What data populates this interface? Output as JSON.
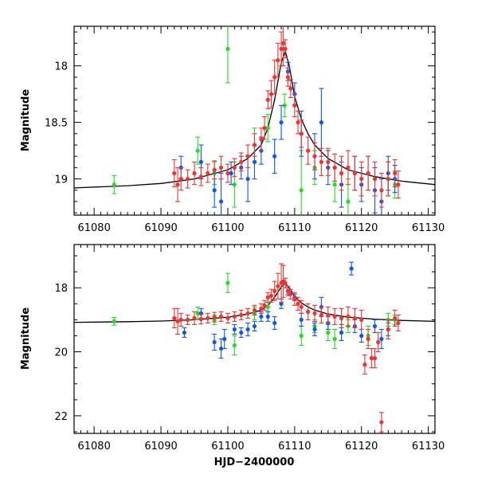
{
  "chart_data": [
    {
      "id": "top",
      "type": "scatter",
      "title": "",
      "xlabel": "",
      "ylabel": "Magnitude",
      "xlim": [
        61077,
        61131
      ],
      "ylim": [
        17.65,
        19.32
      ],
      "y_inverted": true,
      "xticks": [
        61080,
        61090,
        61100,
        61110,
        61120,
        61130
      ],
      "xtick_labels": [
        "61080",
        "61090",
        "61100",
        "61110",
        "61120",
        "61130"
      ],
      "yticks": [
        18,
        18.5,
        19
      ],
      "ytick_labels": [
        "18",
        "18.5",
        "19"
      ],
      "model_curve": {
        "x": [
          61077,
          61085,
          61090,
          61095,
          61100,
          61103,
          61105,
          61106,
          61107,
          61108,
          61108.6,
          61109.2,
          61110,
          61111,
          61112,
          61113,
          61115,
          61118,
          61122,
          61126,
          61131
        ],
        "y": [
          19.08,
          19.06,
          19.04,
          19.0,
          18.92,
          18.82,
          18.7,
          18.55,
          18.3,
          17.97,
          17.87,
          18.0,
          18.27,
          18.47,
          18.6,
          18.7,
          18.82,
          18.92,
          18.98,
          19.02,
          19.05
        ]
      },
      "series": [
        {
          "name": "green",
          "color": "#22dd22",
          "x": [
            61083,
            61095.5,
            61098,
            61100,
            61101,
            61104,
            61106,
            61108.5,
            61111,
            61113,
            61116,
            61118,
            61121,
            61124,
            61125
          ],
          "y": [
            19.05,
            18.75,
            18.95,
            17.85,
            19.05,
            18.7,
            18.55,
            18.35,
            19.1,
            18.9,
            19.05,
            19.2,
            18.95,
            19.0,
            19.05
          ],
          "err": [
            0.08,
            0.12,
            0.1,
            0.3,
            0.2,
            0.15,
            0.12,
            0.1,
            0.35,
            0.15,
            0.15,
            0.2,
            0.15,
            0.15,
            0.12
          ]
        },
        {
          "name": "blue",
          "color": "#1155ee",
          "x": [
            61093,
            61096,
            61098,
            61099,
            61100.5,
            61102,
            61103,
            61104,
            61105,
            61107,
            61108,
            61109,
            61110,
            61111,
            61113,
            61114,
            61115,
            61117,
            61119,
            61120,
            61122,
            61123,
            61124,
            61125
          ],
          "y": [
            18.9,
            18.85,
            19.1,
            19.2,
            18.95,
            18.9,
            19.0,
            18.85,
            18.75,
            18.8,
            18.5,
            18.05,
            18.25,
            18.6,
            18.8,
            18.5,
            18.9,
            19.05,
            18.95,
            19.05,
            19.1,
            19.2,
            18.95,
            19.0
          ],
          "err": [
            0.1,
            0.15,
            0.15,
            0.25,
            0.1,
            0.1,
            0.2,
            0.15,
            0.12,
            0.15,
            0.15,
            0.08,
            0.1,
            0.2,
            0.2,
            0.3,
            0.15,
            0.2,
            0.15,
            0.15,
            0.2,
            0.2,
            0.15,
            0.12
          ]
        },
        {
          "name": "red",
          "color": "#ee3333",
          "x": [
            61092,
            61092.5,
            61093,
            61094,
            61095,
            61096,
            61097,
            61098,
            61099,
            61100,
            61101,
            61102,
            61103,
            61104,
            61105,
            61105.5,
            61106,
            61106.5,
            61107,
            61107.5,
            61108,
            61108.3,
            61108.6,
            61109,
            61109.4,
            61110,
            61110.5,
            61111,
            61112,
            61113,
            61114,
            61115,
            61116,
            61117,
            61118,
            61119,
            61120,
            61121,
            61122,
            61123,
            61124,
            61125,
            61125.5
          ],
          "y": [
            18.95,
            19.05,
            19.0,
            19.0,
            18.95,
            18.98,
            18.95,
            18.92,
            18.9,
            18.95,
            18.9,
            18.85,
            18.8,
            18.7,
            18.65,
            18.55,
            18.3,
            18.25,
            18.1,
            17.95,
            17.85,
            17.8,
            17.85,
            18.1,
            18.2,
            18.35,
            18.5,
            18.6,
            18.75,
            18.8,
            18.85,
            18.85,
            18.9,
            18.95,
            18.9,
            18.95,
            19.0,
            18.95,
            19.0,
            19.1,
            19.0,
            18.95,
            19.05
          ],
          "err": [
            0.12,
            0.15,
            0.1,
            0.08,
            0.1,
            0.08,
            0.08,
            0.08,
            0.1,
            0.08,
            0.08,
            0.08,
            0.1,
            0.1,
            0.1,
            0.1,
            0.08,
            0.12,
            0.15,
            0.15,
            0.15,
            0.2,
            0.08,
            0.08,
            0.08,
            0.1,
            0.1,
            0.12,
            0.12,
            0.12,
            0.12,
            0.12,
            0.12,
            0.15,
            0.15,
            0.15,
            0.15,
            0.15,
            0.15,
            0.15,
            0.15,
            0.12,
            0.12
          ]
        }
      ]
    },
    {
      "id": "bottom",
      "type": "scatter",
      "title": "",
      "xlabel": "HJD−2400000",
      "ylabel": "Magnitude",
      "xlim": [
        61077,
        61131
      ],
      "ylim": [
        16.65,
        22.55
      ],
      "y_inverted": true,
      "xticks": [
        61080,
        61090,
        61100,
        61110,
        61120,
        61130
      ],
      "xtick_labels": [
        "61080",
        "61090",
        "61100",
        "61110",
        "61120",
        "61130"
      ],
      "yticks": [
        18,
        20,
        22
      ],
      "ytick_labels": [
        "18",
        "20",
        "22"
      ],
      "model_curve": {
        "x": [
          61077,
          61085,
          61090,
          61095,
          61100,
          61103,
          61105,
          61106,
          61107,
          61108,
          61108.6,
          61109.2,
          61110,
          61111,
          61112,
          61113,
          61115,
          61118,
          61122,
          61126,
          61131
        ],
        "y": [
          19.08,
          19.06,
          19.04,
          19.0,
          18.92,
          18.82,
          18.7,
          18.55,
          18.3,
          17.97,
          17.87,
          18.0,
          18.27,
          18.47,
          18.6,
          18.7,
          18.82,
          18.92,
          18.98,
          19.02,
          19.05
        ]
      },
      "series": [
        {
          "name": "green",
          "color": "#22dd22",
          "x": [
            61083,
            61095.5,
            61098,
            61100,
            61101,
            61104,
            61106,
            61111,
            61113,
            61115,
            61116,
            61117,
            61118,
            61121,
            61124,
            61125
          ],
          "y": [
            19.05,
            18.8,
            19.0,
            17.85,
            19.8,
            18.8,
            18.6,
            19.5,
            19.2,
            19.4,
            19.6,
            19.4,
            19.2,
            19.5,
            19.0,
            19.0
          ],
          "err": [
            0.12,
            0.2,
            0.15,
            0.3,
            0.3,
            0.2,
            0.15,
            0.3,
            0.2,
            0.25,
            0.3,
            0.25,
            0.2,
            0.3,
            0.2,
            0.15
          ]
        },
        {
          "name": "blue",
          "color": "#1155ee",
          "x": [
            61093.5,
            61096,
            61098,
            61099,
            61099.5,
            61101,
            61102,
            61103,
            61104,
            61105,
            61106,
            61107,
            61108,
            61109,
            61110,
            61111,
            61113,
            61114,
            61115,
            61117,
            61118.5,
            61119,
            61120,
            61122,
            61123,
            61124
          ],
          "y": [
            19.4,
            18.8,
            19.7,
            19.9,
            19.6,
            19.3,
            19.4,
            19.3,
            19.2,
            18.9,
            18.9,
            19.1,
            18.5,
            18.1,
            18.3,
            19.0,
            19.3,
            18.6,
            19.1,
            19.4,
            17.4,
            19.2,
            19.5,
            19.2,
            19.6,
            19.3
          ],
          "err": [
            0.15,
            0.15,
            0.25,
            0.3,
            0.3,
            0.15,
            0.15,
            0.2,
            0.15,
            0.15,
            0.15,
            0.2,
            0.15,
            0.1,
            0.1,
            0.2,
            0.2,
            0.3,
            0.2,
            0.25,
            0.2,
            0.2,
            0.2,
            0.2,
            0.3,
            0.2
          ]
        },
        {
          "name": "red",
          "color": "#ee3333",
          "x": [
            61092,
            61092.5,
            61093,
            61094,
            61095,
            61096,
            61097,
            61098,
            61099,
            61100,
            61101,
            61102,
            61103,
            61104,
            61105,
            61105.5,
            61106,
            61106.5,
            61107,
            61107.5,
            61108,
            61108.3,
            61108.6,
            61109,
            61109.4,
            61110,
            61110.5,
            61111,
            61112,
            61113,
            61114,
            61115,
            61116,
            61117,
            61118,
            61119,
            61120,
            61120.5,
            61121,
            61121.5,
            61122,
            61122.5,
            61123,
            61124,
            61125,
            61125.5
          ],
          "y": [
            18.95,
            19.05,
            19.0,
            19.0,
            18.95,
            18.98,
            18.95,
            18.92,
            18.9,
            18.95,
            18.9,
            18.85,
            18.8,
            18.7,
            18.65,
            18.55,
            18.3,
            18.25,
            18.1,
            17.95,
            17.85,
            17.8,
            17.85,
            18.1,
            18.2,
            18.35,
            18.5,
            18.6,
            18.75,
            18.8,
            18.85,
            18.85,
            18.9,
            18.95,
            18.9,
            18.95,
            19.0,
            20.4,
            19.6,
            20.2,
            20.2,
            19.7,
            22.2,
            19.3,
            18.95,
            19.1
          ],
          "err": [
            0.3,
            0.4,
            0.2,
            0.15,
            0.2,
            0.15,
            0.15,
            0.15,
            0.15,
            0.15,
            0.15,
            0.15,
            0.15,
            0.15,
            0.15,
            0.15,
            0.15,
            0.2,
            0.3,
            0.4,
            0.6,
            0.5,
            0.15,
            0.15,
            0.15,
            0.2,
            0.2,
            0.2,
            0.25,
            0.25,
            0.25,
            0.25,
            0.25,
            0.3,
            0.3,
            0.3,
            0.3,
            0.3,
            0.3,
            0.3,
            0.3,
            0.3,
            0.3,
            0.3,
            0.25,
            0.25
          ]
        }
      ]
    }
  ]
}
